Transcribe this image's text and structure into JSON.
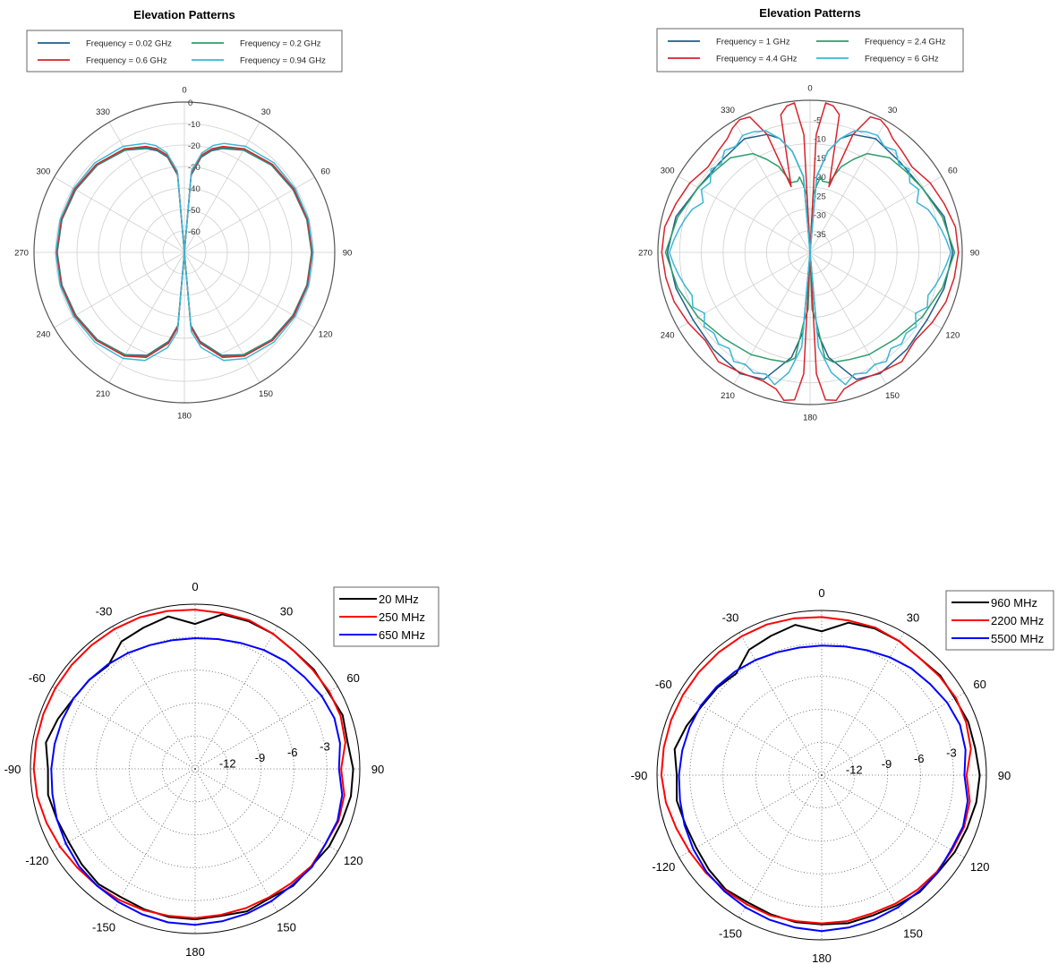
{
  "chart_data": [
    {
      "type": "polar",
      "title": "Elevation Patterns",
      "legend_position": "top",
      "angle_ticks": [
        "0",
        "30",
        "60",
        "90",
        "120",
        "150",
        "180",
        "210",
        "240",
        "270",
        "300",
        "330"
      ],
      "radial_ticks": [
        "0",
        "-10",
        "-20",
        "-30",
        "-40",
        "-50",
        "-60"
      ],
      "rlim": [
        -70,
        0
      ],
      "theta_zero": "top",
      "direction": "clockwise",
      "grid": true,
      "series": [
        {
          "name": "Frequency = 0.02 GHz",
          "color": "#1f5f8b",
          "theta": [
            0,
            5,
            10,
            15,
            20,
            30,
            45,
            60,
            75,
            90,
            105,
            120,
            135,
            150,
            160,
            170,
            175,
            180
          ],
          "r": [
            -70,
            -34,
            -25,
            -21,
            -18.5,
            -15,
            -12.6,
            -11.6,
            -11,
            -10.8,
            -11,
            -11.6,
            -12.6,
            -15,
            -19,
            -28,
            -36,
            -70
          ]
        },
        {
          "name": "Frequency = 0.2 GHz",
          "color": "#2e9e6b",
          "theta": [
            0,
            5,
            10,
            15,
            20,
            30,
            45,
            60,
            75,
            90,
            105,
            120,
            135,
            150,
            160,
            170,
            175,
            180
          ],
          "r": [
            -70,
            -33.5,
            -24.5,
            -20.5,
            -18,
            -14.8,
            -12.4,
            -11.4,
            -10.9,
            -10.7,
            -10.9,
            -11.4,
            -12.4,
            -14.8,
            -18.5,
            -27.5,
            -35.5,
            -70
          ]
        },
        {
          "name": "Frequency = 0.6 GHz",
          "color": "#d8232a",
          "theta": [
            0,
            5,
            10,
            15,
            20,
            30,
            45,
            60,
            75,
            90,
            105,
            120,
            135,
            150,
            160,
            170,
            175,
            180
          ],
          "r": [
            -70,
            -33,
            -24,
            -20,
            -17.5,
            -14.3,
            -12,
            -11.1,
            -10.7,
            -10.5,
            -10.7,
            -11.1,
            -12,
            -14.3,
            -18,
            -27,
            -35,
            -70
          ]
        },
        {
          "name": "Frequency = 0.94 GHz",
          "color": "#3ab7d6",
          "theta": [
            0,
            5,
            10,
            15,
            20,
            30,
            45,
            60,
            75,
            90,
            105,
            120,
            135,
            150,
            160,
            170,
            175,
            180
          ],
          "r": [
            -70,
            -32,
            -23,
            -18.5,
            -16,
            -13,
            -11,
            -10.5,
            -10.2,
            -10.1,
            -10.2,
            -10.5,
            -11,
            -13,
            -16.5,
            -25,
            -33,
            -70
          ]
        }
      ]
    },
    {
      "type": "polar",
      "title": "Elevation Patterns",
      "legend_position": "top",
      "angle_ticks": [
        "0",
        "30",
        "60",
        "90",
        "120",
        "150",
        "180",
        "210",
        "240",
        "270",
        "300",
        "330"
      ],
      "radial_ticks": [
        "-5",
        "-10",
        "-15",
        "-20",
        "-25",
        "-30",
        "-35"
      ],
      "rlim": [
        -40,
        0
      ],
      "theta_zero": "top",
      "direction": "clockwise",
      "grid": true,
      "series": [
        {
          "name": "Frequency = 1 GHz",
          "color": "#1f5f8b",
          "theta": [
            0,
            5,
            10,
            15,
            20,
            30,
            45,
            60,
            75,
            90,
            105,
            120,
            135,
            150,
            160,
            170,
            175,
            180
          ],
          "r": [
            -40,
            -20,
            -13,
            -9,
            -7,
            -5.5,
            -6.5,
            -6,
            -3.5,
            -2.5,
            -3.5,
            -4.5,
            -4,
            -3.2,
            -4.5,
            -12,
            -19,
            -40
          ]
        },
        {
          "name": "Frequency = 2.4 GHz",
          "color": "#2e9e6b",
          "theta": [
            0,
            3,
            6,
            8,
            10,
            12,
            15,
            20,
            25,
            30,
            40,
            50,
            60,
            75,
            90,
            105,
            120,
            135,
            150,
            160,
            168,
            172,
            175,
            178,
            180
          ],
          "r": [
            -40,
            -25,
            -22,
            -20,
            -21,
            -21,
            -21,
            -16,
            -13,
            -10,
            -7.5,
            -7,
            -6,
            -4,
            -2,
            -4,
            -6,
            -8,
            -9,
            -10,
            -10.5,
            -12,
            -22,
            -25,
            -40
          ]
        },
        {
          "name": "Frequency = 4.4 GHz",
          "color": "#d8232a",
          "theta": [
            0,
            3,
            6,
            9,
            12,
            16,
            20,
            24,
            28,
            32,
            36,
            42,
            50,
            60,
            70,
            80,
            90,
            100,
            110,
            120,
            130,
            140,
            150,
            160,
            166,
            170,
            174,
            177,
            180
          ],
          "r": [
            -40,
            -9,
            -0.5,
            -1,
            -3,
            -22,
            -7,
            -1,
            -0.5,
            -1.5,
            -3,
            -4,
            -5,
            -3.5,
            -2.5,
            -1.2,
            -1,
            -1.5,
            -2,
            -3,
            -4,
            -2.5,
            -3.5,
            -4,
            -3,
            -0.5,
            -1,
            -8,
            -40
          ]
        },
        {
          "name": "Frequency = 6 GHz",
          "color": "#3ab7d6",
          "theta": [
            0,
            5,
            10,
            15,
            20,
            25,
            30,
            35,
            40,
            45,
            50,
            55,
            60,
            65,
            70,
            75,
            80,
            85,
            90,
            95,
            100,
            105,
            110,
            115,
            120,
            125,
            130,
            135,
            140,
            145,
            150,
            155,
            160,
            165,
            170,
            175,
            180
          ],
          "r": [
            -40,
            -20,
            -13,
            -9,
            -6,
            -5,
            -4.5,
            -6,
            -5,
            -7,
            -6,
            -8,
            -7,
            -9,
            -7,
            -6,
            -5,
            -4,
            -3,
            -4,
            -5,
            -6,
            -7,
            -6,
            -8,
            -6,
            -7,
            -6,
            -7,
            -5,
            -6,
            -5,
            -6,
            -4,
            -8,
            -15,
            -40
          ]
        }
      ]
    },
    {
      "type": "polar",
      "title": "",
      "legend_position": "top-right",
      "angle_ticks": [
        "0",
        "30",
        "60",
        "90",
        "120",
        "150",
        "180",
        "-150",
        "-120",
        "-90",
        "-60",
        "-30"
      ],
      "radial_ticks": [
        "-12",
        "-9",
        "-6",
        "-3"
      ],
      "rlim": [
        -15,
        0
      ],
      "theta_zero": "top",
      "direction": "counterclockwise",
      "grid": true,
      "series": [
        {
          "name": "20 MHz",
          "color": "#000000",
          "theta": [
            -180,
            -170,
            -160,
            -150,
            -140,
            -130,
            -120,
            -110,
            -100,
            -90,
            -80,
            -70,
            -60,
            -50,
            -40,
            -30,
            -20,
            -10,
            0,
            10,
            20,
            30,
            40,
            50,
            60,
            70,
            80,
            90,
            100,
            110,
            120,
            130,
            140,
            150,
            160,
            170,
            180
          ],
          "r": [
            -1.3,
            -1.4,
            -1.2,
            -1.4,
            -1.1,
            -1.2,
            -0.9,
            -0.8,
            -0.6,
            -0.6,
            -0.9,
            -0.7,
            -1,
            -0.9,
            -1,
            -0.8,
            -0.7,
            -0.7,
            -1.8,
            -0.9,
            -1.3,
            -1.6,
            -2.7,
            -2.4,
            -2.2,
            -1.7,
            -1.2,
            -1.6,
            -1.4,
            -1.6,
            -1.7,
            -1.5,
            -1.3,
            -1.5,
            -1.4,
            -1.3,
            -1.3
          ]
        },
        {
          "name": "250 MHz",
          "color": "#ff0000",
          "theta": [
            -180,
            -170,
            -160,
            -150,
            -140,
            -130,
            -120,
            -110,
            -100,
            -90,
            -80,
            -70,
            -60,
            -50,
            -40,
            -30,
            -20,
            -10,
            0,
            10,
            20,
            30,
            40,
            50,
            60,
            70,
            80,
            90,
            100,
            110,
            120,
            130,
            140,
            150,
            160,
            170,
            180
          ],
          "r": [
            -1.4,
            -1.5,
            -1.5,
            -1.5,
            -1.4,
            -1.2,
            -1.3,
            -1.1,
            -1.2,
            -1.7,
            -1.1,
            -0.9,
            -0.9,
            -1,
            -1,
            -0.8,
            -0.6,
            -0.6,
            -0.5,
            -0.4,
            -0.3,
            -0.3,
            -0.3,
            -0.3,
            -0.3,
            -0.3,
            -0.3,
            -0.3,
            -0.4,
            -0.6,
            -0.8,
            -1,
            -1.1,
            -1.2,
            -1.3,
            -1.4,
            -1.4
          ]
        },
        {
          "name": "650 MHz",
          "color": "#0000ff",
          "theta": [
            -180,
            -170,
            -160,
            -150,
            -140,
            -130,
            -120,
            -110,
            -100,
            -90,
            -80,
            -70,
            -60,
            -50,
            -40,
            -30,
            -20,
            -10,
            0,
            10,
            20,
            30,
            40,
            50,
            60,
            70,
            80,
            90,
            100,
            110,
            120,
            130,
            140,
            150,
            160,
            170,
            180
          ],
          "r": [
            -0.8,
            -0.9,
            -1,
            -1.1,
            -1.2,
            -1.1,
            -1.3,
            -1.2,
            -1.4,
            -1.9,
            -1.6,
            -1.5,
            -1.7,
            -2,
            -2.2,
            -2.5,
            -2.8,
            -3,
            -3.1,
            -3.1,
            -3,
            -2.8,
            -2.6,
            -2.4,
            -2.2,
            -2.1,
            -2,
            -1.9,
            -1.8,
            -1.6,
            -1.4,
            -1.2,
            -1.1,
            -1,
            -0.9,
            -0.8,
            -0.8
          ]
        }
      ]
    },
    {
      "type": "polar",
      "title": "",
      "legend_position": "top-right",
      "angle_ticks": [
        "0",
        "30",
        "60",
        "90",
        "120",
        "150",
        "180",
        "-150",
        "-120",
        "-90",
        "-60",
        "-30"
      ],
      "radial_ticks": [
        "-12",
        "-9",
        "-6",
        "-3"
      ],
      "rlim": [
        -15,
        0
      ],
      "theta_zero": "top",
      "direction": "counterclockwise",
      "grid": true,
      "series": [
        {
          "name": "960 MHz",
          "color": "#000000",
          "theta": [
            -180,
            -170,
            -160,
            -150,
            -140,
            -130,
            -120,
            -110,
            -100,
            -90,
            -80,
            -70,
            -60,
            -50,
            -40,
            -30,
            -20,
            -10,
            0,
            10,
            20,
            30,
            40,
            50,
            60,
            70,
            80,
            90,
            100,
            110,
            120,
            130,
            140,
            150,
            160,
            170,
            180
          ],
          "r": [
            -1.4,
            -1.3,
            -1.4,
            -1.3,
            -1.1,
            -1.2,
            -1,
            -0.9,
            -0.7,
            -0.6,
            -0.8,
            -0.8,
            -1,
            -0.9,
            -1.1,
            -0.9,
            -0.8,
            -0.9,
            -1.9,
            -1.1,
            -1.5,
            -1.8,
            -2.9,
            -2.6,
            -2.4,
            -1.9,
            -1.4,
            -1.8,
            -1.6,
            -1.8,
            -1.8,
            -1.6,
            -1.4,
            -1.6,
            -1.5,
            -1.4,
            -1.4
          ]
        },
        {
          "name": "2200 MHz",
          "color": "#ff0000",
          "theta": [
            -180,
            -170,
            -160,
            -150,
            -140,
            -130,
            -120,
            -110,
            -100,
            -90,
            -80,
            -70,
            -60,
            -50,
            -40,
            -30,
            -20,
            -10,
            0,
            10,
            20,
            30,
            40,
            50,
            60,
            70,
            80,
            90,
            100,
            110,
            120,
            130,
            140,
            150,
            160,
            170,
            180
          ],
          "r": [
            -1.5,
            -1.5,
            -1.6,
            -1.5,
            -1.4,
            -1.3,
            -1.3,
            -1.2,
            -1.3,
            -1.8,
            -1.2,
            -1,
            -0.9,
            -1,
            -1.1,
            -0.9,
            -0.7,
            -0.7,
            -0.6,
            -0.5,
            -0.4,
            -0.4,
            -0.4,
            -0.4,
            -0.4,
            -0.4,
            -0.4,
            -0.4,
            -0.6,
            -0.9,
            -1.1,
            -1.2,
            -1.3,
            -1.4,
            -1.4,
            -1.5,
            -1.5
          ]
        },
        {
          "name": "5500 MHz",
          "color": "#0000ff",
          "theta": [
            -180,
            -170,
            -160,
            -150,
            -140,
            -130,
            -120,
            -110,
            -100,
            -90,
            -80,
            -70,
            -60,
            -50,
            -40,
            -30,
            -20,
            -10,
            0,
            10,
            20,
            30,
            40,
            50,
            60,
            70,
            80,
            90,
            100,
            110,
            120,
            130,
            140,
            150,
            160,
            170,
            180
          ],
          "r": [
            -0.8,
            -0.9,
            -1,
            -1.1,
            -1.2,
            -1.2,
            -1.4,
            -1.3,
            -1.5,
            -2,
            -1.7,
            -1.6,
            -1.8,
            -2.1,
            -2.3,
            -2.6,
            -2.9,
            -3.1,
            -3.2,
            -3.2,
            -3.1,
            -2.9,
            -2.7,
            -2.5,
            -2.3,
            -2.2,
            -2.1,
            -2,
            -1.9,
            -1.7,
            -1.5,
            -1.3,
            -1.2,
            -1.1,
            -1,
            -0.9,
            -0.8
          ]
        }
      ]
    }
  ]
}
